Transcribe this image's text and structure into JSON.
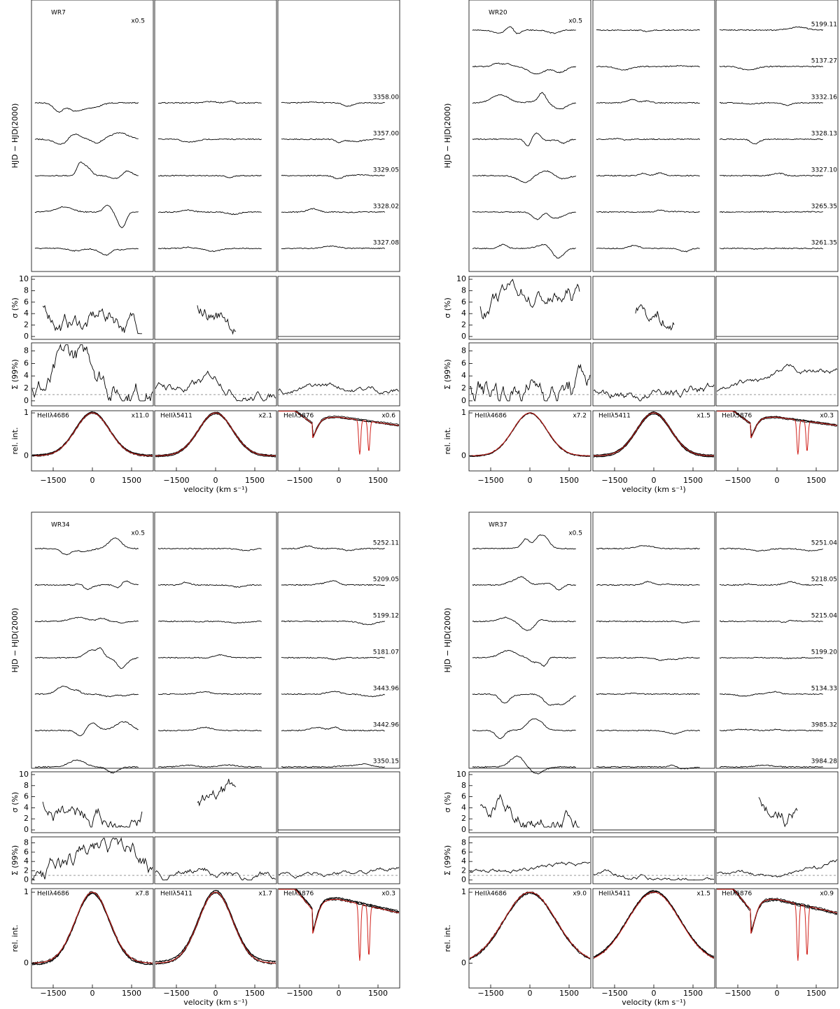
{
  "figure": {
    "y_label_spectra": "HJD − HJD(2000)",
    "y_label_sigma": "σ (%)",
    "y_label_significance": "Σ (99%)",
    "y_label_profile": "rel. int.",
    "x_label": "velocity (km s⁻¹)",
    "velocity_lim": [
      -2330,
      2330
    ],
    "velocity_ticks": [
      {
        "value": -1500,
        "label": "−1500"
      },
      0,
      1500
    ],
    "sigma_lim": [
      -0.5,
      10.5
    ],
    "sigma_ticks": [
      0,
      2,
      4,
      6,
      8,
      10
    ],
    "significance_lim": [
      -0.8,
      9.3
    ],
    "significance_ticks": [
      0,
      2,
      4,
      6,
      8
    ],
    "significance_threshold": 1,
    "profile_lim": [
      -0.35,
      1.05
    ],
    "profile_ticks": [
      0,
      1
    ],
    "stars": [
      {
        "name": "WR7",
        "scale": "x0.5",
        "dates": [
          "3358.00",
          "3357.00",
          "3329.05",
          "3328.02",
          "3327.08"
        ],
        "lines": [
          {
            "label": "HeIIλ4686",
            "scale": "x11.0"
          },
          {
            "label": "HeIIλ5411",
            "scale": "x2.1"
          },
          {
            "label": "HeIλ5876",
            "scale": "x0.6"
          }
        ]
      },
      {
        "name": "WR20",
        "scale": "x0.5",
        "dates": [
          "5199.11",
          "5137.27",
          "3332.16",
          "3328.13",
          "3327.10",
          "3265.35",
          "3261.35"
        ],
        "lines": [
          {
            "label": "HeIIλ4686",
            "scale": "x7.2"
          },
          {
            "label": "HeIIλ5411",
            "scale": "x1.5"
          },
          {
            "label": "HeIλ5876",
            "scale": "x0.3"
          }
        ]
      },
      {
        "name": "WR34",
        "scale": "x0.5",
        "dates": [
          "5252.11",
          "5209.05",
          "5199.12",
          "5181.07",
          "3443.96",
          "3442.96",
          "3350.15"
        ],
        "lines": [
          {
            "label": "HeIIλ4686",
            "scale": "x7.8"
          },
          {
            "label": "HeIIλ5411",
            "scale": "x1.7"
          },
          {
            "label": "HeIλ5876",
            "scale": "x0.3"
          }
        ]
      },
      {
        "name": "WR37",
        "scale": "x0.5",
        "dates": [
          "5251.04",
          "5218.05",
          "5215.04",
          "5199.20",
          "5134.33",
          "3985.32",
          "3984.28"
        ],
        "lines": [
          {
            "label": "HeIIλ4686",
            "scale": "x9.0"
          },
          {
            "label": "HeIIλ5411",
            "scale": "x1.5"
          },
          {
            "label": "HeIλ5876",
            "scale": "x0.9"
          }
        ]
      }
    ]
  }
}
